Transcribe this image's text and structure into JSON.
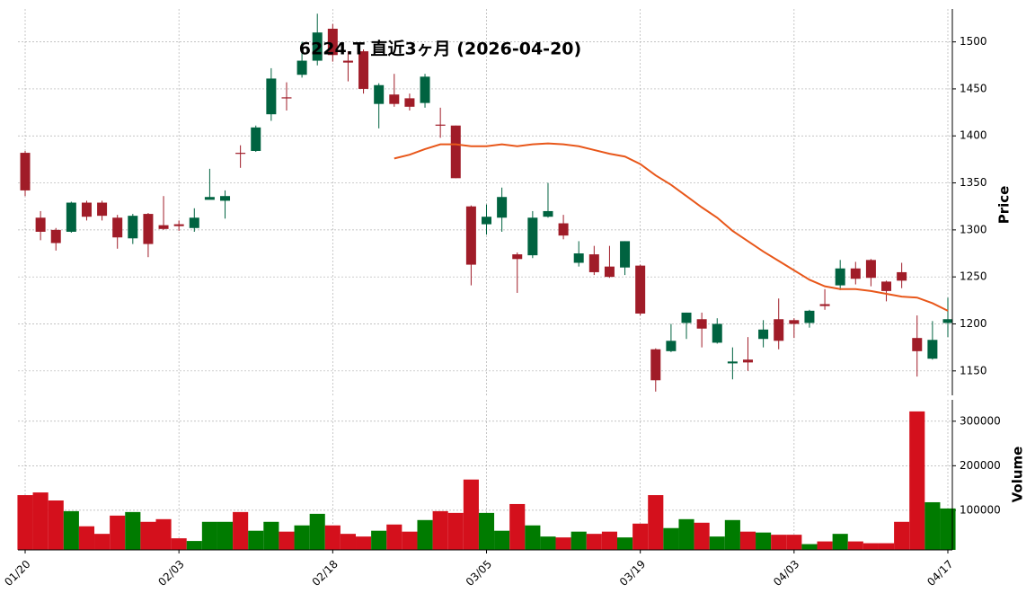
{
  "chart_data": [
    {
      "type": "candlestick",
      "title": "6224.T 直近3ヶ月 (2026-04-20)",
      "ylabel": "Price",
      "categories": [
        "01/20",
        null,
        null,
        null,
        null,
        null,
        null,
        null,
        null,
        null,
        "02/03",
        null,
        null,
        null,
        null,
        null,
        null,
        null,
        null,
        null,
        "02/18",
        null,
        null,
        null,
        null,
        null,
        null,
        null,
        null,
        null,
        "03/05",
        null,
        null,
        null,
        null,
        null,
        null,
        null,
        null,
        null,
        "03/19",
        null,
        null,
        null,
        null,
        null,
        null,
        null,
        null,
        null,
        "04/03",
        null,
        null,
        null,
        null,
        null,
        null,
        null,
        null,
        null,
        "04/17"
      ],
      "open": [
        1382,
        1313,
        1300,
        1298,
        1329,
        1329,
        1313,
        1291,
        1317,
        1305,
        1306,
        1302,
        1332,
        1331,
        1382,
        1384,
        1423,
        1441,
        1465,
        1480,
        1514,
        1480,
        1490,
        1434,
        1444,
        1440,
        1435,
        1412,
        1411,
        1325,
        1306,
        1313,
        1274,
        1273,
        1314,
        1307,
        1265,
        1274,
        1261,
        1260,
        1262,
        1173,
        1171,
        1201,
        1205,
        1180,
        1158,
        1162,
        1184,
        1205,
        1204,
        1201,
        1221,
        1241,
        1259,
        1268,
        1245,
        1255,
        1185,
        1163,
        1201
      ],
      "high": [
        1384,
        1320,
        1302,
        1330,
        1331,
        1331,
        1316,
        1317,
        1318,
        1336,
        1310,
        1323,
        1365,
        1342,
        1390,
        1411,
        1472,
        1457,
        1500,
        1530,
        1519,
        1490,
        1492,
        1456,
        1466,
        1445,
        1466,
        1430,
        1411,
        1326,
        1327,
        1345,
        1276,
        1320,
        1350,
        1316,
        1288,
        1283,
        1283,
        1288,
        1263,
        1174,
        1200,
        1212,
        1212,
        1206,
        1175,
        1186,
        1204,
        1227,
        1206,
        1215,
        1237,
        1268,
        1266,
        1269,
        1246,
        1265,
        1209,
        1203,
        1228
      ],
      "low": [
        1336,
        1289,
        1278,
        1297,
        1310,
        1310,
        1280,
        1285,
        1271,
        1300,
        1299,
        1298,
        1333,
        1312,
        1366,
        1383,
        1416,
        1427,
        1462,
        1475,
        1479,
        1458,
        1445,
        1408,
        1431,
        1427,
        1430,
        1398,
        1355,
        1241,
        1295,
        1298,
        1233,
        1270,
        1313,
        1290,
        1261,
        1252,
        1249,
        1252,
        1209,
        1128,
        1170,
        1184,
        1175,
        1179,
        1141,
        1150,
        1175,
        1173,
        1185,
        1196,
        1215,
        1236,
        1242,
        1240,
        1224,
        1238,
        1144,
        1162,
        1186
      ],
      "close": [
        1342,
        1298,
        1286,
        1329,
        1314,
        1315,
        1292,
        1315,
        1285,
        1301,
        1304,
        1313,
        1335,
        1336,
        1381,
        1409,
        1461,
        1440,
        1480,
        1510,
        1486,
        1478,
        1450,
        1454,
        1434,
        1431,
        1463,
        1411,
        1355,
        1263,
        1314,
        1335,
        1269,
        1313,
        1320,
        1294,
        1275,
        1255,
        1250,
        1288,
        1211,
        1140,
        1182,
        1212,
        1195,
        1200,
        1160,
        1159,
        1194,
        1182,
        1200,
        1214,
        1219,
        1259,
        1248,
        1249,
        1235,
        1246,
        1171,
        1183,
        1205
      ],
      "ma": {
        "color": "#e8571a",
        "values": [
          null,
          null,
          null,
          null,
          null,
          null,
          null,
          null,
          null,
          null,
          null,
          null,
          null,
          null,
          null,
          null,
          null,
          null,
          null,
          null,
          null,
          null,
          null,
          null,
          1376,
          1380,
          1386,
          1391,
          1391,
          1389,
          1389,
          1391,
          1389,
          1391,
          1392,
          1391,
          1389,
          1385,
          1381,
          1378,
          1370,
          1358,
          1348,
          1336,
          1324,
          1313,
          1299,
          1288,
          1277,
          1267,
          1257,
          1247,
          1240,
          1237,
          1237,
          1235,
          1232,
          1229,
          1228,
          1222,
          1214
        ]
      },
      "up_color": "#006340",
      "down_color": "#a01c28",
      "ylim": [
        1124,
        1535
      ],
      "yticks": [
        1150,
        1200,
        1250,
        1300,
        1350,
        1400,
        1450,
        1500
      ],
      "grid": true
    },
    {
      "type": "bar",
      "ylabel": "Volume",
      "values": [
        134000,
        140000,
        122000,
        98000,
        64000,
        47000,
        88000,
        96000,
        74000,
        80000,
        37000,
        31000,
        74000,
        74000,
        96000,
        54000,
        74000,
        52000,
        66000,
        92000,
        66000,
        47000,
        41000,
        54000,
        68000,
        52000,
        78000,
        98000,
        94000,
        169000,
        94000,
        54000,
        114000,
        66000,
        41000,
        39000,
        52000,
        47000,
        52000,
        39000,
        70000,
        134000,
        60000,
        80000,
        72000,
        41000,
        78000,
        52000,
        50000,
        45000,
        45000,
        24000,
        30000,
        47000,
        30000,
        26000,
        26000,
        74000,
        322000,
        118000,
        104000
      ],
      "up_color": "#007b00",
      "down_color": "#d4101c",
      "ylim": [
        11000,
        348000
      ],
      "yticks": [
        100000,
        200000,
        300000
      ],
      "grid": true
    }
  ]
}
